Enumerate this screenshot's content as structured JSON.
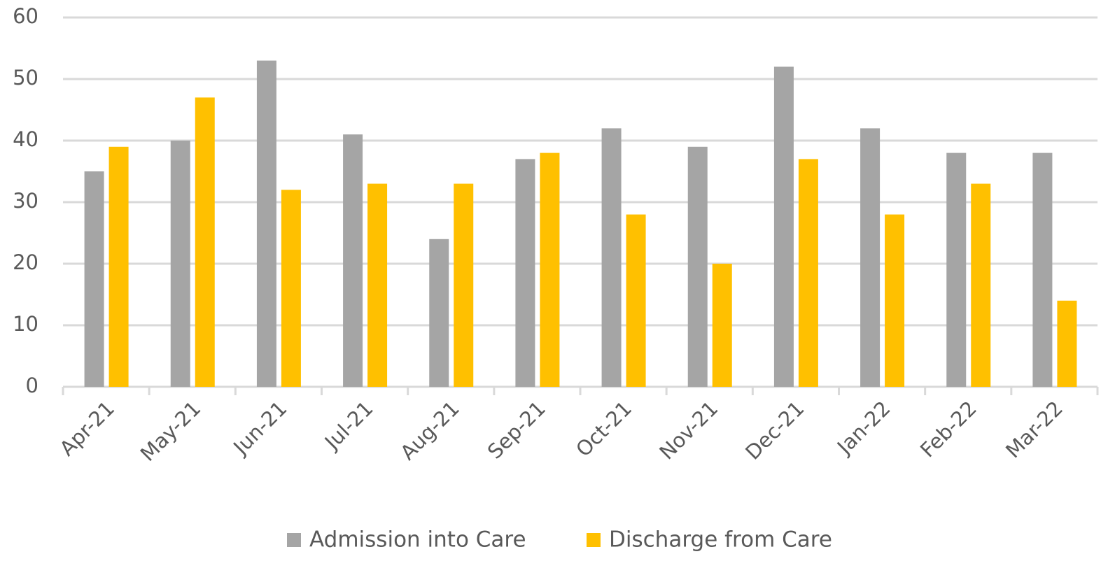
{
  "chart_data": {
    "type": "bar",
    "categories": [
      "Apr-21",
      "May-21",
      "Jun-21",
      "Jul-21",
      "Aug-21",
      "Sep-21",
      "Oct-21",
      "Nov-21",
      "Dec-21",
      "Jan-22",
      "Feb-22",
      "Mar-22"
    ],
    "series": [
      {
        "name": "Admission into Care",
        "color": "#a5a5a5",
        "values": [
          35,
          40,
          53,
          41,
          24,
          37,
          42,
          39,
          52,
          42,
          38,
          38
        ]
      },
      {
        "name": "Discharge from Care",
        "color": "#ffc000",
        "values": [
          39,
          47,
          32,
          33,
          33,
          38,
          28,
          20,
          37,
          28,
          33,
          14
        ]
      }
    ],
    "ylim": [
      0,
      60
    ],
    "yticks": [
      0,
      10,
      20,
      30,
      40,
      50,
      60
    ],
    "grid": true,
    "legend": "bottom"
  }
}
